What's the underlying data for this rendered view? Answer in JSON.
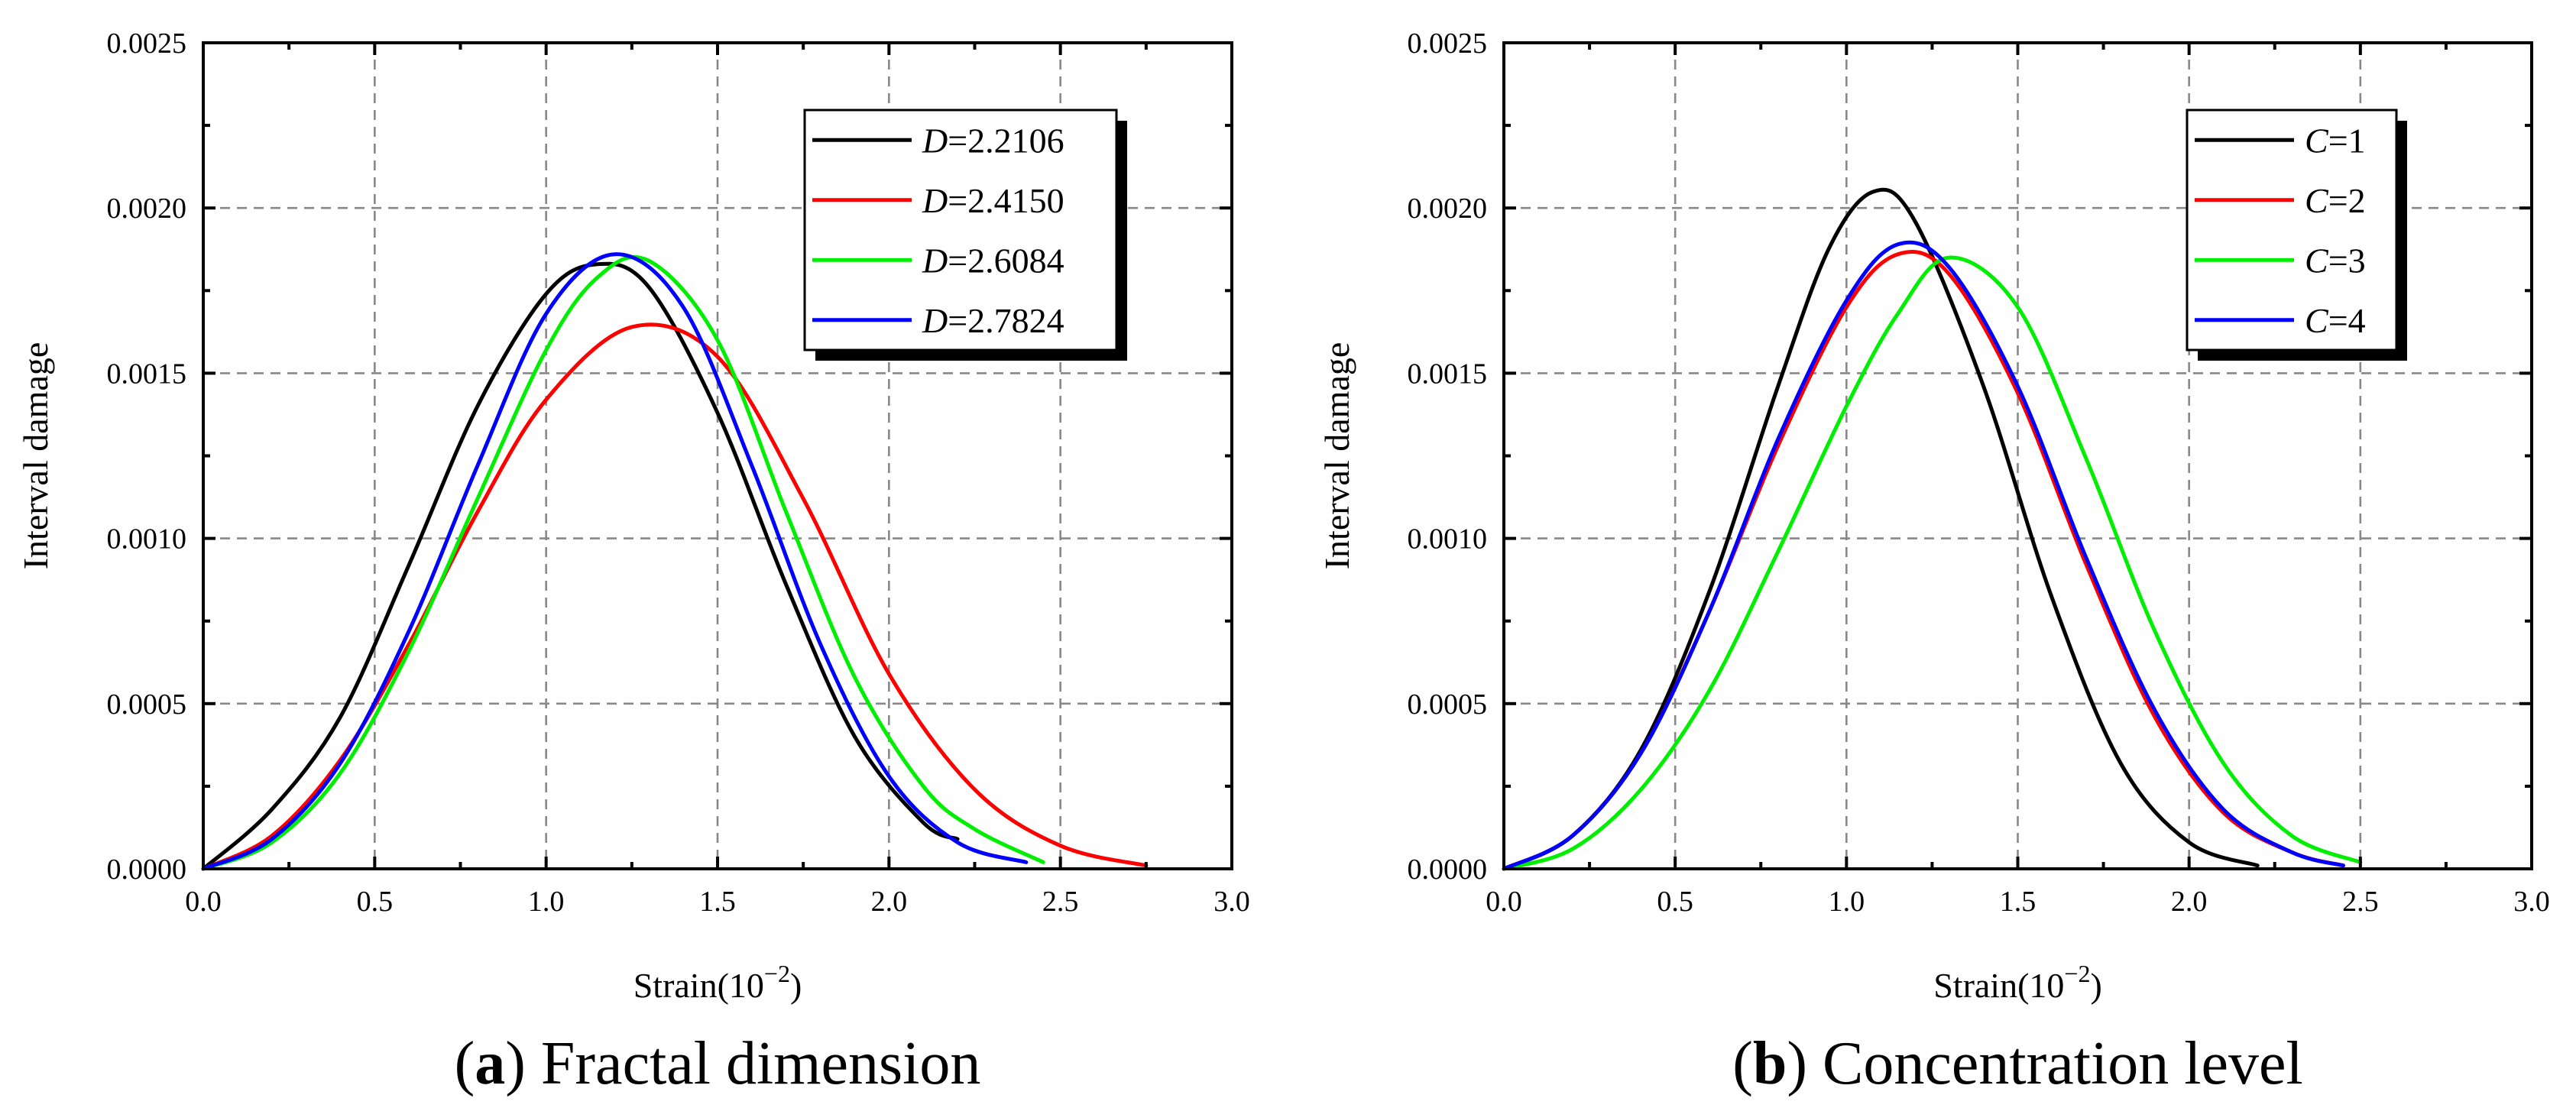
{
  "chart_data": [
    {
      "id": "a",
      "type": "line",
      "caption_letter": "a",
      "caption_text": "Fractal dimension",
      "xlabel": "Strain(10",
      "xlabel_exp": "−2",
      "xlabel_close": ")",
      "ylabel": "Interval damage",
      "xlim": [
        0,
        3.0
      ],
      "ylim": [
        0,
        0.0025
      ],
      "xticks": [
        "0.0",
        "0.5",
        "1.0",
        "1.5",
        "2.0",
        "2.5",
        "3.0"
      ],
      "yticks": [
        "0.0000",
        "0.0005",
        "0.0010",
        "0.0015",
        "0.0020",
        "0.0025"
      ],
      "grid": true,
      "legend_position": "top-right",
      "series": [
        {
          "var": "D",
          "value": "=2.2106",
          "color": "#000000",
          "x": [
            0,
            0.2,
            0.4,
            0.6,
            0.8,
            1.0,
            1.15,
            1.3,
            1.5,
            1.7,
            1.9,
            2.1,
            2.2
          ],
          "y": [
            0,
            0.00018,
            0.00046,
            0.00092,
            0.0014,
            0.00174,
            0.00183,
            0.00176,
            0.00138,
            0.00086,
            0.0004,
            0.00014,
            9e-05
          ]
        },
        {
          "var": "D",
          "value": "=2.4150",
          "color": "#ff0000",
          "x": [
            0,
            0.2,
            0.4,
            0.6,
            0.8,
            1.0,
            1.25,
            1.5,
            1.75,
            2.0,
            2.25,
            2.5,
            2.75
          ],
          "y": [
            0,
            0.0001,
            0.00033,
            0.00068,
            0.00108,
            0.00142,
            0.00164,
            0.00155,
            0.00112,
            0.00059,
            0.00024,
            7e-05,
            1e-05
          ]
        },
        {
          "var": "D",
          "value": "=2.6084",
          "color": "#00ee00",
          "x": [
            0,
            0.2,
            0.4,
            0.6,
            0.8,
            1.0,
            1.15,
            1.3,
            1.5,
            1.7,
            1.9,
            2.1,
            2.25,
            2.45
          ],
          "y": [
            0,
            8e-05,
            0.00029,
            0.00066,
            0.00112,
            0.00157,
            0.00179,
            0.00184,
            0.0016,
            0.00108,
            0.00058,
            0.00025,
            0.00012,
            2e-05
          ]
        },
        {
          "var": "D",
          "value": "=2.7824",
          "color": "#0000ff",
          "x": [
            0,
            0.2,
            0.4,
            0.6,
            0.8,
            1.0,
            1.2,
            1.4,
            1.6,
            1.8,
            2.0,
            2.2,
            2.4
          ],
          "y": [
            0,
            9e-05,
            0.00032,
            0.00072,
            0.00122,
            0.00168,
            0.00186,
            0.0017,
            0.00122,
            0.00068,
            0.00028,
            8e-05,
            2e-05
          ]
        }
      ]
    },
    {
      "id": "b",
      "type": "line",
      "caption_letter": "b",
      "caption_text": "Concentration level",
      "xlabel": "Strain(10",
      "xlabel_exp": "−2",
      "xlabel_close": ")",
      "ylabel": "Interval damage",
      "xlim": [
        0,
        3.0
      ],
      "ylim": [
        0,
        0.0025
      ],
      "xticks": [
        "0.0",
        "0.5",
        "1.0",
        "1.5",
        "2.0",
        "2.5",
        "3.0"
      ],
      "yticks": [
        "0.0000",
        "0.0005",
        "0.0010",
        "0.0015",
        "0.0020",
        "0.0025"
      ],
      "grid": true,
      "legend_position": "top-right",
      "series": [
        {
          "var": "C",
          "value": "=1",
          "color": "#000000",
          "x": [
            0,
            0.2,
            0.4,
            0.6,
            0.8,
            0.95,
            1.08,
            1.2,
            1.4,
            1.6,
            1.8,
            2.0,
            2.2
          ],
          "y": [
            0,
            0.0001,
            0.00036,
            0.00084,
            0.00146,
            0.00188,
            0.00205,
            0.00196,
            0.00146,
            0.00082,
            0.00032,
            8e-05,
            1e-05
          ]
        },
        {
          "var": "C",
          "value": "=2",
          "color": "#ff0000",
          "x": [
            0,
            0.2,
            0.4,
            0.6,
            0.8,
            1.0,
            1.15,
            1.3,
            1.5,
            1.7,
            1.9,
            2.1,
            2.3,
            2.45
          ],
          "y": [
            0,
            0.0001,
            0.00035,
            0.00078,
            0.00128,
            0.0017,
            0.00186,
            0.0018,
            0.00144,
            0.00092,
            0.00046,
            0.00017,
            5e-05,
            1e-05
          ]
        },
        {
          "var": "C",
          "value": "=3",
          "color": "#00ee00",
          "x": [
            0,
            0.2,
            0.4,
            0.6,
            0.8,
            1.0,
            1.15,
            1.3,
            1.5,
            1.7,
            1.9,
            2.1,
            2.3,
            2.5
          ],
          "y": [
            0,
            6e-05,
            0.00024,
            0.00054,
            0.00096,
            0.0014,
            0.00168,
            0.00185,
            0.0017,
            0.00124,
            0.00072,
            0.00032,
            0.0001,
            2e-05
          ]
        },
        {
          "var": "C",
          "value": "=4",
          "color": "#0000ff",
          "x": [
            0,
            0.2,
            0.4,
            0.6,
            0.8,
            1.0,
            1.15,
            1.3,
            1.5,
            1.7,
            1.9,
            2.1,
            2.3,
            2.45
          ],
          "y": [
            0,
            0.0001,
            0.00035,
            0.00078,
            0.0013,
            0.00172,
            0.00189,
            0.00182,
            0.00146,
            0.00094,
            0.00048,
            0.00018,
            5e-05,
            1e-05
          ]
        }
      ]
    }
  ]
}
